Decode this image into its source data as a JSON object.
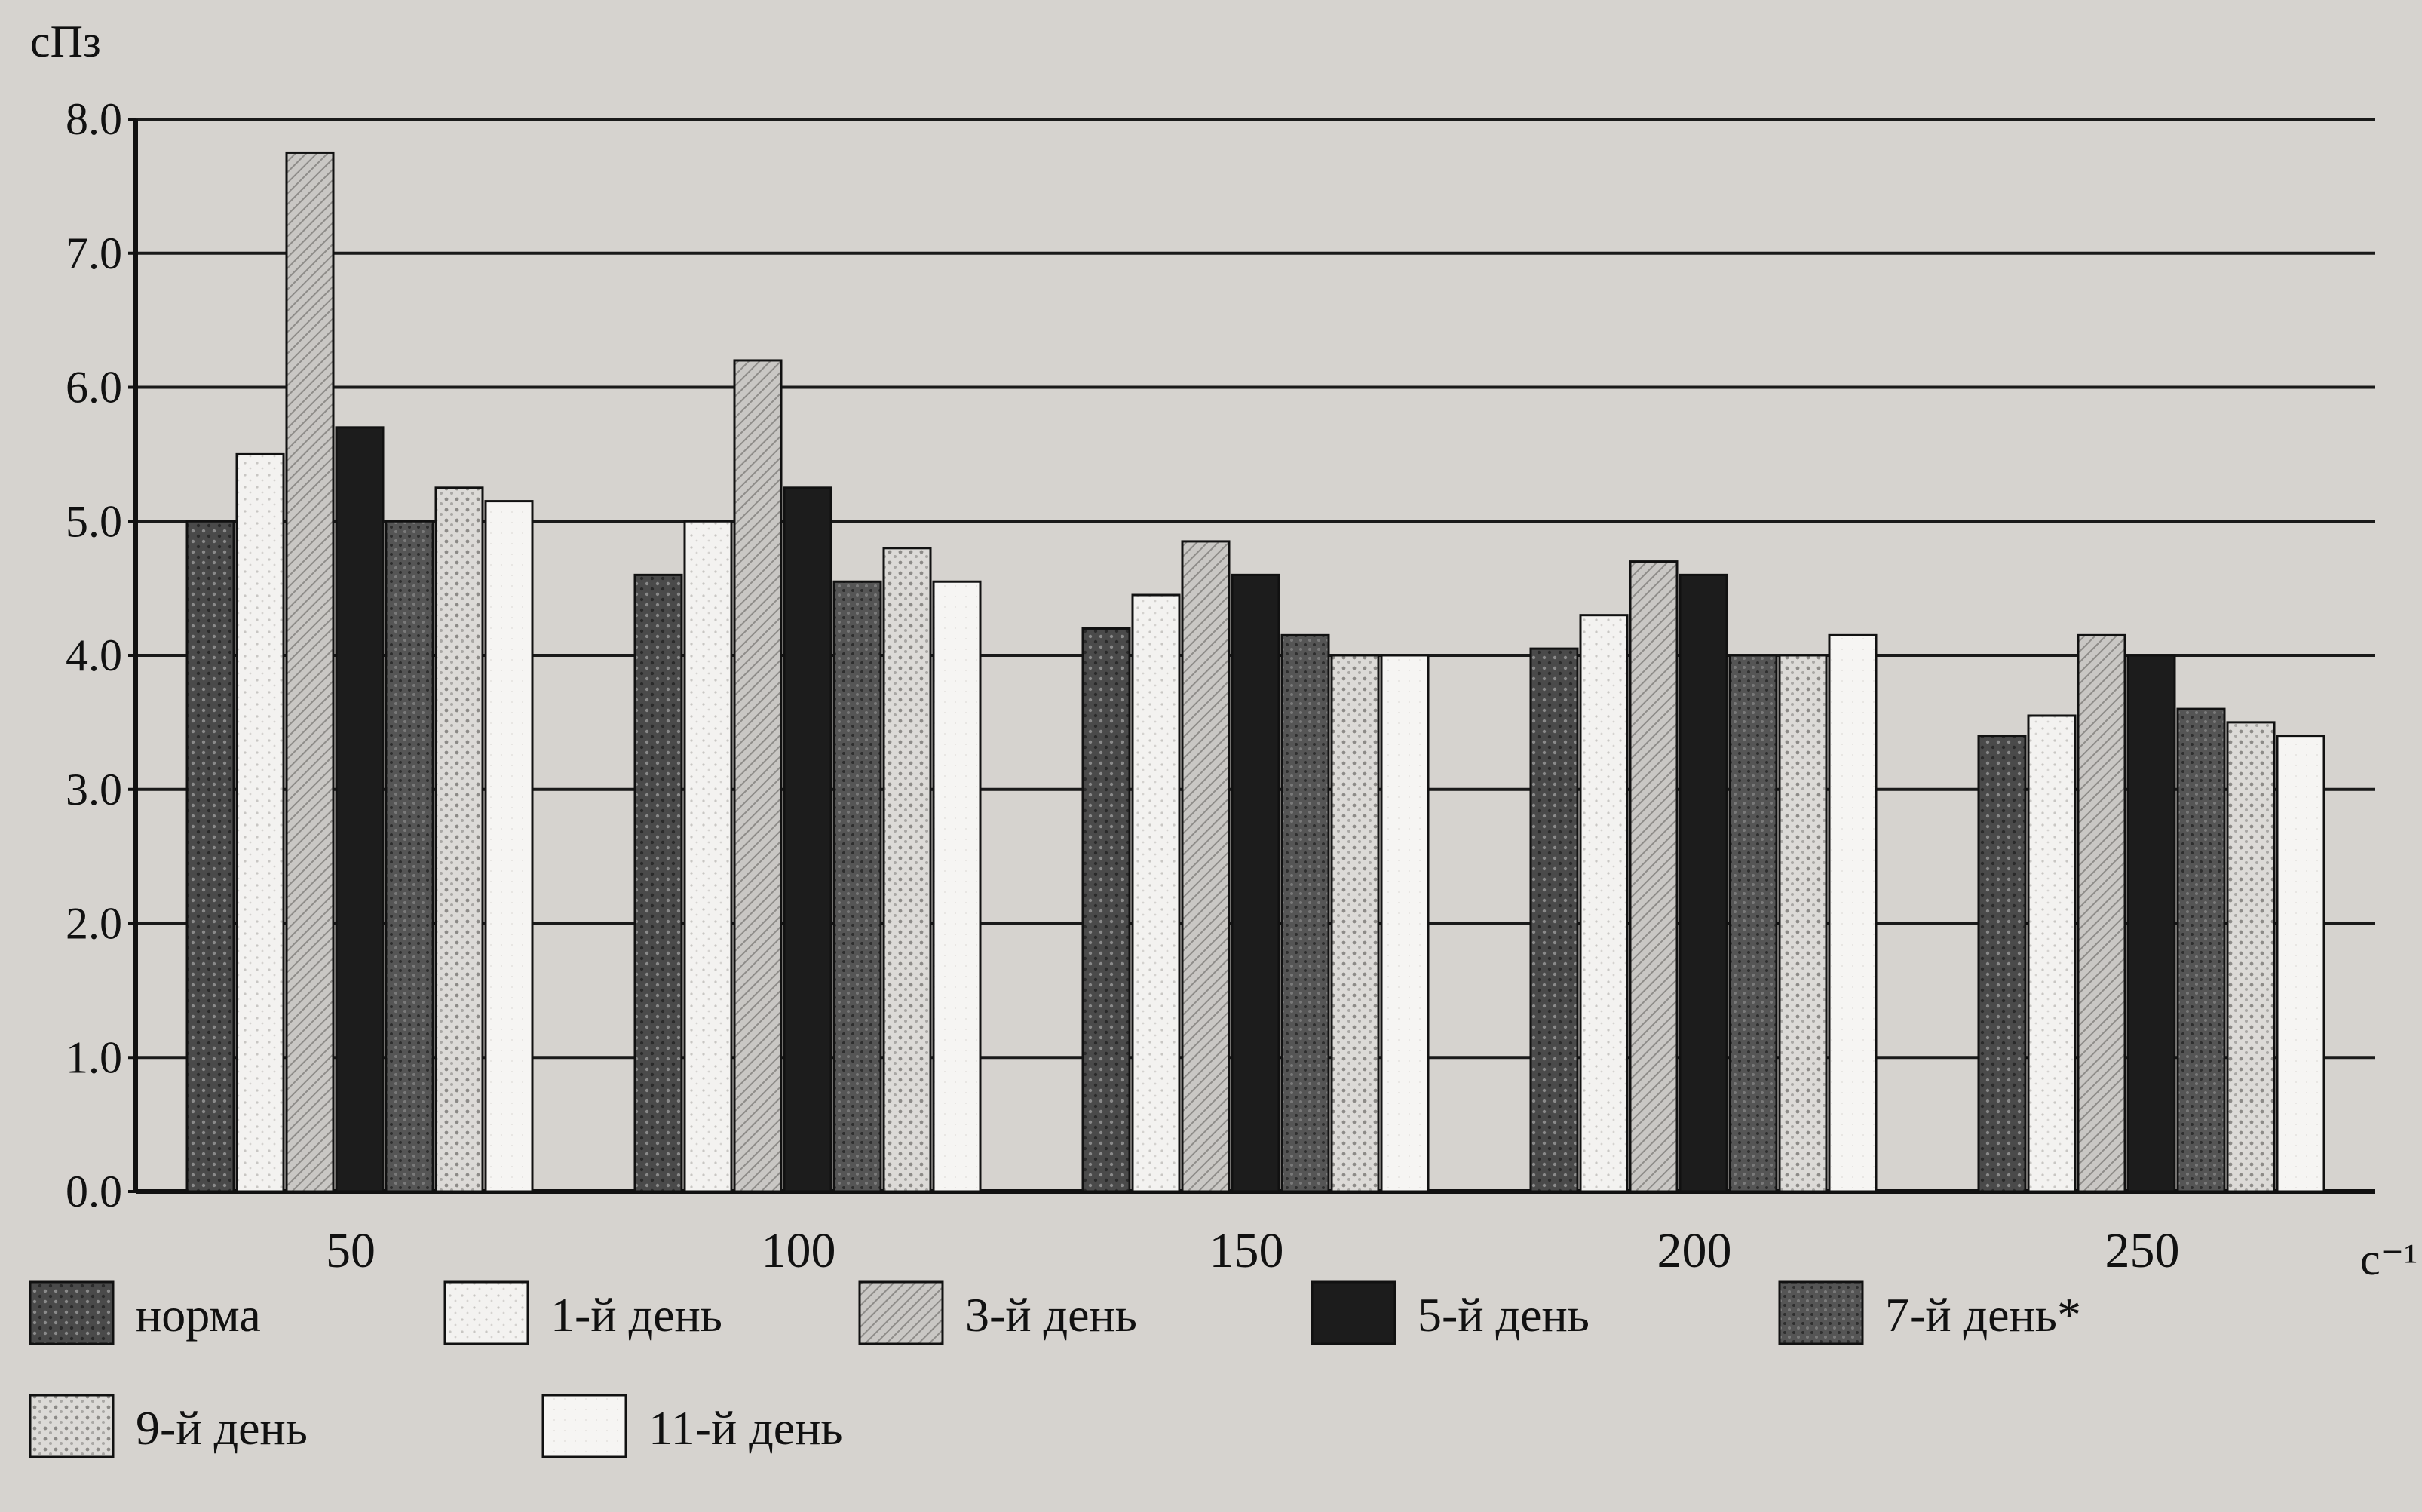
{
  "chart_data": {
    "type": "bar",
    "title": "",
    "ylabel": "сПз",
    "xlabel": "с⁻¹",
    "ylim": [
      0,
      8
    ],
    "yticks": [
      "0.0",
      "1.0",
      "2.0",
      "3.0",
      "4.0",
      "5.0",
      "6.0",
      "7.0",
      "8.0"
    ],
    "grid": true,
    "legend_position": "bottom",
    "categories": [
      "50",
      "100",
      "150",
      "200",
      "250"
    ],
    "series": [
      {
        "name": "норма",
        "values": [
          5.0,
          4.6,
          4.2,
          4.05,
          3.4
        ],
        "color": "#3c3c3c",
        "pattern": "dots-dark"
      },
      {
        "name": "1-й день",
        "values": [
          5.5,
          5.0,
          4.45,
          4.3,
          3.55
        ],
        "color": "#f1f0ee",
        "pattern": "light-dots"
      },
      {
        "name": "3-й день",
        "values": [
          7.75,
          6.2,
          4.85,
          4.7,
          4.15
        ],
        "color": "#b8b6b3",
        "pattern": "hatch"
      },
      {
        "name": "5-й день",
        "values": [
          5.7,
          5.25,
          4.6,
          4.6,
          4.0
        ],
        "color": "#1a1a1a",
        "pattern": "solid"
      },
      {
        "name": "7-й день*",
        "values": [
          5.0,
          4.55,
          4.15,
          4.0,
          3.6
        ],
        "color": "#4a4a4a",
        "pattern": "dots-mid"
      },
      {
        "name": "9-й день",
        "values": [
          5.25,
          4.8,
          4.0,
          4.0,
          3.5
        ],
        "color": "#cfcdca",
        "pattern": "crosshatch"
      },
      {
        "name": "11-й день",
        "values": [
          5.15,
          4.55,
          4.0,
          4.15,
          3.4
        ],
        "color": "#f4f3f1",
        "pattern": "plain-light"
      }
    ]
  }
}
